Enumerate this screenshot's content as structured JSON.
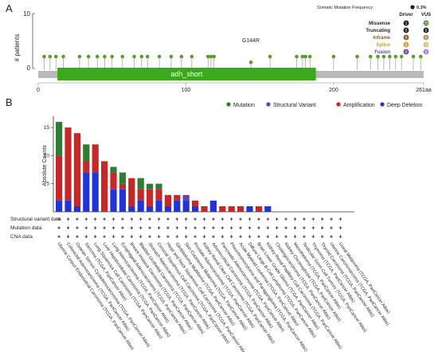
{
  "panel_a": {
    "letter": "A",
    "ylabel": "# patients",
    "y_ticks": [
      "0",
      "10"
    ],
    "x_ticks": [
      "0",
      "100",
      "200",
      "261aa"
    ],
    "domain_label": "adh_short",
    "callout": "G144R",
    "legend": {
      "title": "Somatic Mutation Frequency",
      "frequency": "0.3%",
      "columns": [
        "Driver",
        "VUS"
      ],
      "rows": [
        {
          "name": "Missense",
          "driver": "1",
          "vus": "35",
          "name_color": "#222222",
          "driver_color": "#1a1a1a",
          "vus_color": "#4a7a23"
        },
        {
          "name": "Truncating",
          "driver": "0",
          "vus": "0",
          "name_color": "#222222",
          "driver_color": "#1a1a1a",
          "vus_color": "#1a1a1a"
        },
        {
          "name": "Inframe",
          "driver": "0",
          "vus": "0",
          "name_color": "#8a5a2b",
          "driver_color": "#8a5a2b",
          "vus_color": "#b08a5a"
        },
        {
          "name": "Splice",
          "driver": "0",
          "vus": "2",
          "name_color": "#c9a227",
          "driver_color": "#c9a227",
          "vus_color": "#d9bf6a"
        },
        {
          "name": "Fusion",
          "driver": "0",
          "vus": "0",
          "name_color": "#6a3fa0",
          "driver_color": "#6a3fa0",
          "vus_color": "#9b80c6"
        }
      ]
    }
  },
  "panel_b": {
    "letter": "B",
    "legend": [
      "Mutation",
      "Structural Variant",
      "Amplification",
      "Deep Deletion"
    ],
    "row_labels": [
      "Structural variant data",
      "Mutation data",
      "CNA data"
    ]
  },
  "colors": {
    "mutation": "#2e7d32",
    "structural_variant": "#6a3fa0",
    "amplification": "#c62828",
    "deep_deletion": "#1f35d9",
    "domain": "#3ca81e",
    "backbone": "#b9b9b9",
    "lollipop": "#5c9c2b"
  },
  "chart_data": [
    {
      "type": "lollipop",
      "xlim": [
        0,
        261
      ],
      "domain": {
        "name": "adh_short",
        "start": 13,
        "end": 188
      },
      "mutations": [
        {
          "pos": 4,
          "count": 1
        },
        {
          "pos": 8,
          "count": 1
        },
        {
          "pos": 12,
          "count": 1
        },
        {
          "pos": 17,
          "count": 1
        },
        {
          "pos": 28,
          "count": 1
        },
        {
          "pos": 34,
          "count": 1
        },
        {
          "pos": 40,
          "count": 1
        },
        {
          "pos": 45,
          "count": 1
        },
        {
          "pos": 50,
          "count": 1
        },
        {
          "pos": 57,
          "count": 1
        },
        {
          "pos": 65,
          "count": 1
        },
        {
          "pos": 70,
          "count": 1
        },
        {
          "pos": 74,
          "count": 1
        },
        {
          "pos": 82,
          "count": 1
        },
        {
          "pos": 90,
          "count": 1
        },
        {
          "pos": 97,
          "count": 1
        },
        {
          "pos": 104,
          "count": 1
        },
        {
          "pos": 115,
          "count": 1
        },
        {
          "pos": 117,
          "count": 1
        },
        {
          "pos": 119,
          "count": 1
        },
        {
          "pos": 144,
          "count": 2
        },
        {
          "pos": 157,
          "count": 1
        },
        {
          "pos": 175,
          "count": 1
        },
        {
          "pos": 179,
          "count": 1
        },
        {
          "pos": 181,
          "count": 1
        },
        {
          "pos": 184,
          "count": 1
        },
        {
          "pos": 200,
          "count": 1
        },
        {
          "pos": 216,
          "count": 1
        },
        {
          "pos": 225,
          "count": 1
        },
        {
          "pos": 230,
          "count": 1
        },
        {
          "pos": 234,
          "count": 1
        },
        {
          "pos": 238,
          "count": 1
        },
        {
          "pos": 242,
          "count": 1
        },
        {
          "pos": 246,
          "count": 1
        },
        {
          "pos": 254,
          "count": 1
        },
        {
          "pos": 259,
          "count": 1
        }
      ],
      "ylim": [
        0,
        10
      ]
    },
    {
      "type": "bar",
      "stacked": true,
      "ylabel": "Absolute Counts",
      "y_ticks": [
        5,
        10,
        15
      ],
      "ylim": [
        0,
        17
      ],
      "categories": [
        "Uterine Corpus Endometrial Carcinoma (TCGA, PanCancer Atlas)",
        "Colorectal Adenocarcinoma (TCGA, PanCancer Atlas)",
        "Ovarian Serous Cystadenocarcinoma (TCGA, PanCancer Atlas)",
        "Sarcoma (TCGA, PanCancer Atlas)",
        "Lung Squamous Cell Carcinoma (TCGA, PanCancer Atlas)",
        "Liver Hepatocellular Carcinoma (TCGA, PanCancer Atlas)",
        "Lung Adenocarcinoma (TCGA, PanCancer Atlas)",
        "Esophageal Adenocarcinoma (TCGA, PanCancer Atlas)",
        "Breast Invasive Carcinoma (TCGA, PanCancer Atlas)",
        "Bladder Urothelial Carcinoma (TCGA, PanCancer Atlas)",
        "Stomach Adenocarcinoma (TCGA, PanCancer Atlas)",
        "Cervical Squamous Cell Carcinoma (TCGA, PanCancer Atlas)",
        "Head and Neck Squamous Cell Carcinoma (TCGA, PanCancer Atlas)",
        "Glioblastoma Multiforme (TCGA, PanCancer Atlas)",
        "Skin Cutaneous Melanoma (TCGA, PanCancer Atlas)",
        "Prostate Adenocarcinoma (TCGA, PanCancer Atlas)",
        "Kidney Renal Clear Cell Carcinoma (TCGA, PanCancer Atlas)",
        "Adrenocortical Carcinoma (TCGA, PanCancer Atlas)",
        "Pancreatic Adenocarcinoma (TCGA, PanCancer Atlas)",
        "Pheochromocytoma and Paraganglioma (TCGA, PanCancer Atlas)",
        "Acute Myeloid Leukemia (TCGA, PanCancer Atlas)",
        "Diffuse Large B-Cell Lymphoma (TCGA, PanCancer Atlas)",
        "Brain Lower Grade Glioma (TCGA, PanCancer Atlas)",
        "Kidney Renal Papillary Cell Carcinoma (TCGA, PanCancer Atlas)",
        "Cholangiocarcinoma (TCGA, PanCancer Atlas)",
        "Kidney Chromophobe (TCGA, PanCancer Atlas)",
        "Mesothelioma (TCGA, PanCancer Atlas)",
        "Testicular Germ Cell Tumors (TCGA, PanCancer Atlas)",
        "Thymoma (TCGA, PanCancer Atlas)",
        "Thyroid Carcinoma (TCGA, PanCancer Atlas)",
        "Uterine Carcinosarcoma (TCGA, PanCancer Atlas)",
        "Uveal Melanoma (TCGA, PanCancer Atlas)"
      ],
      "series": [
        {
          "name": "Mutation",
          "values": [
            6,
            0,
            0,
            3,
            0,
            0,
            1,
            2,
            0,
            2,
            1,
            1,
            0,
            0,
            0,
            0,
            0,
            0,
            0,
            0,
            0,
            0,
            0,
            0,
            0,
            0,
            0,
            0,
            0,
            0,
            0,
            0
          ]
        },
        {
          "name": "Structural Variant",
          "values": [
            0,
            0,
            0,
            0,
            0,
            0,
            0,
            0,
            0,
            0,
            0,
            0,
            0,
            0,
            1,
            0,
            0,
            0,
            0,
            0,
            0,
            0,
            0,
            0,
            0,
            0,
            0,
            0,
            0,
            0,
            0,
            0
          ]
        },
        {
          "name": "Amplification",
          "values": [
            8,
            13,
            13,
            2,
            5,
            9,
            3,
            1,
            5,
            2,
            3,
            2,
            2,
            1,
            0,
            1,
            1,
            0,
            1,
            1,
            1,
            0,
            1,
            0,
            0,
            0,
            0,
            0,
            0,
            0,
            0,
            0
          ]
        },
        {
          "name": "Deep Deletion",
          "values": [
            2,
            2,
            1,
            7,
            7,
            0,
            4,
            4,
            1,
            2,
            1,
            2,
            1,
            2,
            2,
            1,
            0,
            2,
            0,
            0,
            0,
            1,
            0,
            1,
            0,
            0,
            0,
            0,
            0,
            0,
            0,
            0
          ]
        }
      ],
      "legend_position": "top"
    }
  ]
}
